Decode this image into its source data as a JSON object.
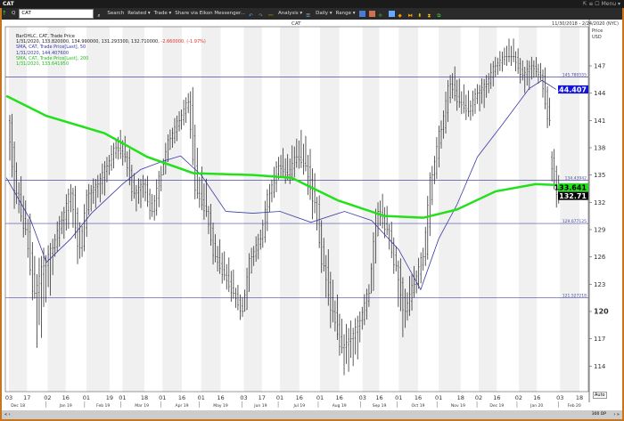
{
  "window": {
    "title": "CAT",
    "right_controls": "⇱ ≡ ☐ Menu ▾"
  },
  "toolbar": {
    "symbol": "CAT",
    "quote_button": "Q",
    "items": [
      "Search",
      "Related ▾",
      "Trade ▾",
      "Share via Eikon Messenger...",
      "Analysis ▾",
      "Daily ▾",
      "Range ▾"
    ]
  },
  "chart": {
    "title": "CAT",
    "date_range": "11/30/2018 - 2/24/2020 (NYC)",
    "price_label": "Price",
    "currency_label": "USD",
    "legend": {
      "line1": "BarOHLC, CAT, Trade Price",
      "line2": "1/31/2020, 133.820000, 134.990000, 131.293300, 132.710000,",
      "line2_change": " -2.660000, (-1.97%)",
      "line3": "SMA, CAT, Trade Price[Last],  50",
      "line4": "1/31/2020, 144.407600",
      "line5": "SMA, CAT, Trade Price[Last],  200",
      "line6": "1/31/2020, 133.641950"
    },
    "colors": {
      "bars": "#333333",
      "sma50": "#3a3aa8",
      "sma200": "#22e01a",
      "hline": "#4a4aa0",
      "change": "#e03030"
    },
    "auto_label": "Auto",
    "dp_label": "300 DP",
    "horizontal_lines": [
      {
        "value": 145.780555,
        "label": "145.780555"
      },
      {
        "value": 134.43942,
        "label": "134.43942"
      },
      {
        "value": 129.677125,
        "label": "129.677125"
      },
      {
        "value": 121.527218,
        "label": "121.527218"
      }
    ],
    "price_tags": [
      {
        "value": 144.407,
        "label": "144.407",
        "bg": "#1414d8",
        "fg": "#ffffff"
      },
      {
        "value": 133.641,
        "label": "133.641",
        "bg": "#22e01a",
        "fg": "#000000"
      },
      {
        "value": 132.71,
        "label": "132.71",
        "bg": "#000000",
        "fg": "#ffffff"
      }
    ]
  },
  "chart_data": {
    "type": "ohlc",
    "ylim": [
      111,
      152
    ],
    "y_ticks": [
      147,
      144,
      141,
      138,
      135,
      132,
      129,
      126,
      123,
      120,
      117,
      114
    ],
    "y_bold_tick": 120,
    "x_ticks": [
      [
        "2018-12-03",
        "03"
      ],
      [
        "2018-12-17",
        "17"
      ],
      [
        "2019-01-02",
        "02"
      ],
      [
        "2019-01-16",
        "16"
      ],
      [
        "2019-02-01",
        "01"
      ],
      [
        "2019-02-19",
        "19"
      ],
      [
        "2019-03-01",
        "01"
      ],
      [
        "2019-03-18",
        "18"
      ],
      [
        "2019-04-01",
        "01"
      ],
      [
        "2019-04-16",
        "16"
      ],
      [
        "2019-05-01",
        "01"
      ],
      [
        "2019-05-16",
        "16"
      ],
      [
        "2019-06-03",
        "03"
      ],
      [
        "2019-06-17",
        "17"
      ],
      [
        "2019-07-01",
        "01"
      ],
      [
        "2019-07-16",
        "16"
      ],
      [
        "2019-08-01",
        "01"
      ],
      [
        "2019-08-16",
        "16"
      ],
      [
        "2019-09-03",
        "03"
      ],
      [
        "2019-09-16",
        "16"
      ],
      [
        "2019-10-01",
        "01"
      ],
      [
        "2019-10-16",
        "16"
      ],
      [
        "2019-11-01",
        "01"
      ],
      [
        "2019-11-18",
        "18"
      ],
      [
        "2019-12-02",
        "02"
      ],
      [
        "2019-12-16",
        "16"
      ],
      [
        "2020-01-02",
        "02"
      ],
      [
        "2020-01-16",
        "16"
      ],
      [
        "2020-02-03",
        "03"
      ],
      [
        "2020-02-18",
        "18"
      ]
    ],
    "month_labels": [
      [
        "2018-12-10",
        "Dec 18"
      ],
      [
        "2019-01-16",
        "Jan 19"
      ],
      [
        "2019-02-14",
        "Feb 19"
      ],
      [
        "2019-03-16",
        "Mar 19"
      ],
      [
        "2019-04-16",
        "Apr 19"
      ],
      [
        "2019-05-16",
        "May 19"
      ],
      [
        "2019-06-16",
        "Jun 19"
      ],
      [
        "2019-07-16",
        "Jul 19"
      ],
      [
        "2019-08-16",
        "Aug 19"
      ],
      [
        "2019-09-16",
        "Sep 19"
      ],
      [
        "2019-10-16",
        "Oct 19"
      ],
      [
        "2019-11-16",
        "Nov 19"
      ],
      [
        "2019-12-16",
        "Dec 19"
      ],
      [
        "2020-01-16",
        "Jan 20"
      ],
      [
        "2020-02-14",
        "Feb 20"
      ]
    ],
    "bars": [
      [
        "2018-12-03",
        141,
        142,
        131,
        133
      ],
      [
        "2018-12-10",
        133,
        135,
        128,
        129
      ],
      [
        "2018-12-17",
        129,
        131,
        121,
        122
      ],
      [
        "2018-12-24",
        122,
        127,
        116,
        125
      ],
      [
        "2018-12-31",
        125,
        128,
        121,
        127
      ],
      [
        "2019-01-07",
        127,
        131,
        126,
        130
      ],
      [
        "2019-01-14",
        130,
        134,
        128,
        133
      ],
      [
        "2019-01-21",
        133,
        134,
        125,
        127
      ],
      [
        "2019-01-28",
        127,
        134,
        126,
        133
      ],
      [
        "2019-02-04",
        133,
        135,
        131,
        134
      ],
      [
        "2019-02-11",
        134,
        137,
        132,
        136
      ],
      [
        "2019-02-18",
        136,
        139,
        135,
        138
      ],
      [
        "2019-02-25",
        138,
        140,
        136,
        137
      ],
      [
        "2019-03-04",
        137,
        138,
        132,
        133
      ],
      [
        "2019-03-11",
        133,
        135,
        131,
        134
      ],
      [
        "2019-03-18",
        134,
        135,
        130,
        131
      ],
      [
        "2019-03-25",
        131,
        136,
        130,
        135
      ],
      [
        "2019-04-01",
        135,
        140,
        135,
        139
      ],
      [
        "2019-04-08",
        139,
        142,
        138,
        141
      ],
      [
        "2019-04-15",
        141,
        144,
        140,
        143
      ],
      [
        "2019-04-22",
        143,
        145,
        132,
        133
      ],
      [
        "2019-04-29",
        133,
        136,
        130,
        131
      ],
      [
        "2019-05-06",
        131,
        132,
        125,
        126
      ],
      [
        "2019-05-13",
        126,
        128,
        123,
        124
      ],
      [
        "2019-05-20",
        124,
        126,
        121,
        122
      ],
      [
        "2019-05-27",
        122,
        123,
        119,
        120
      ],
      [
        "2019-06-03",
        120,
        127,
        120,
        126
      ],
      [
        "2019-06-10",
        126,
        129,
        125,
        128
      ],
      [
        "2019-06-17",
        128,
        134,
        127,
        133
      ],
      [
        "2019-06-24",
        133,
        137,
        132,
        136
      ],
      [
        "2019-07-01",
        136,
        138,
        134,
        135
      ],
      [
        "2019-07-08",
        135,
        139,
        134,
        137
      ],
      [
        "2019-07-15",
        137,
        140,
        135,
        136
      ],
      [
        "2019-07-22",
        136,
        138,
        130,
        132
      ],
      [
        "2019-07-29",
        132,
        133,
        124,
        125
      ],
      [
        "2019-08-05",
        125,
        127,
        118,
        120
      ],
      [
        "2019-08-12",
        120,
        122,
        115,
        116
      ],
      [
        "2019-08-19",
        116,
        119,
        113,
        117
      ],
      [
        "2019-08-26",
        117,
        120,
        114,
        119
      ],
      [
        "2019-09-02",
        119,
        123,
        118,
        122
      ],
      [
        "2019-09-09",
        122,
        132,
        122,
        131
      ],
      [
        "2019-09-16",
        131,
        133,
        128,
        129
      ],
      [
        "2019-09-23",
        129,
        130,
        124,
        125
      ],
      [
        "2019-09-30",
        125,
        126,
        117,
        120
      ],
      [
        "2019-10-07",
        120,
        125,
        119,
        123
      ],
      [
        "2019-10-14",
        123,
        127,
        122,
        126
      ],
      [
        "2019-10-21",
        126,
        136,
        125,
        135
      ],
      [
        "2019-10-28",
        135,
        141,
        134,
        140
      ],
      [
        "2019-11-04",
        140,
        146,
        139,
        145
      ],
      [
        "2019-11-11",
        145,
        147,
        142,
        143
      ],
      [
        "2019-11-18",
        143,
        145,
        141,
        142
      ],
      [
        "2019-11-25",
        142,
        145,
        141,
        144
      ],
      [
        "2019-12-02",
        144,
        146,
        142,
        145
      ],
      [
        "2019-12-09",
        145,
        148,
        144,
        147
      ],
      [
        "2019-12-16",
        147,
        149,
        146,
        148
      ],
      [
        "2019-12-23",
        148,
        150,
        147,
        148
      ],
      [
        "2019-12-30",
        148,
        149,
        145,
        146
      ],
      [
        "2020-01-06",
        146,
        148,
        144,
        147
      ],
      [
        "2020-01-13",
        147,
        148,
        145,
        146
      ],
      [
        "2020-01-20",
        146,
        147,
        140,
        141
      ],
      [
        "2020-01-27",
        137,
        138,
        131.29,
        132.71
      ]
    ],
    "series": [
      {
        "name": "SMA, CAT, Trade Price[Last], 50",
        "color": "#3a3aa8",
        "points": [
          [
            "2018-12-01",
            134.7
          ],
          [
            "2018-12-20",
            130
          ],
          [
            "2019-01-01",
            125.4
          ],
          [
            "2019-01-20",
            128
          ],
          [
            "2019-02-05",
            130.8
          ],
          [
            "2019-03-01",
            134
          ],
          [
            "2019-03-15",
            135.6
          ],
          [
            "2019-04-01",
            136.5
          ],
          [
            "2019-04-15",
            137.1
          ],
          [
            "2019-05-01",
            135
          ],
          [
            "2019-05-20",
            131
          ],
          [
            "2019-06-10",
            130.8
          ],
          [
            "2019-07-01",
            131
          ],
          [
            "2019-07-25",
            129.8
          ],
          [
            "2019-08-20",
            131
          ],
          [
            "2019-09-10",
            130
          ],
          [
            "2019-10-01",
            126.8
          ],
          [
            "2019-10-18",
            122.4
          ],
          [
            "2019-11-01",
            128
          ],
          [
            "2019-11-15",
            131.7
          ],
          [
            "2019-12-01",
            137
          ],
          [
            "2019-12-20",
            140.5
          ],
          [
            "2020-01-10",
            144.5
          ],
          [
            "2020-01-20",
            145.4
          ],
          [
            "2020-01-31",
            144.4
          ]
        ]
      },
      {
        "name": "SMA, CAT, Trade Price[Last], 200",
        "color": "#22e01a",
        "points": [
          [
            "2018-12-01",
            143.7
          ],
          [
            "2019-01-01",
            141.5
          ],
          [
            "2019-02-15",
            139.6
          ],
          [
            "2019-03-20",
            137
          ],
          [
            "2019-04-25",
            135.2
          ],
          [
            "2019-06-10",
            135
          ],
          [
            "2019-07-10",
            134.7
          ],
          [
            "2019-08-15",
            132.2
          ],
          [
            "2019-09-20",
            130.5
          ],
          [
            "2019-10-20",
            130.3
          ],
          [
            "2019-11-15",
            131.2
          ],
          [
            "2019-12-15",
            133.2
          ],
          [
            "2020-01-15",
            134
          ],
          [
            "2020-01-31",
            133.9
          ]
        ]
      }
    ]
  }
}
